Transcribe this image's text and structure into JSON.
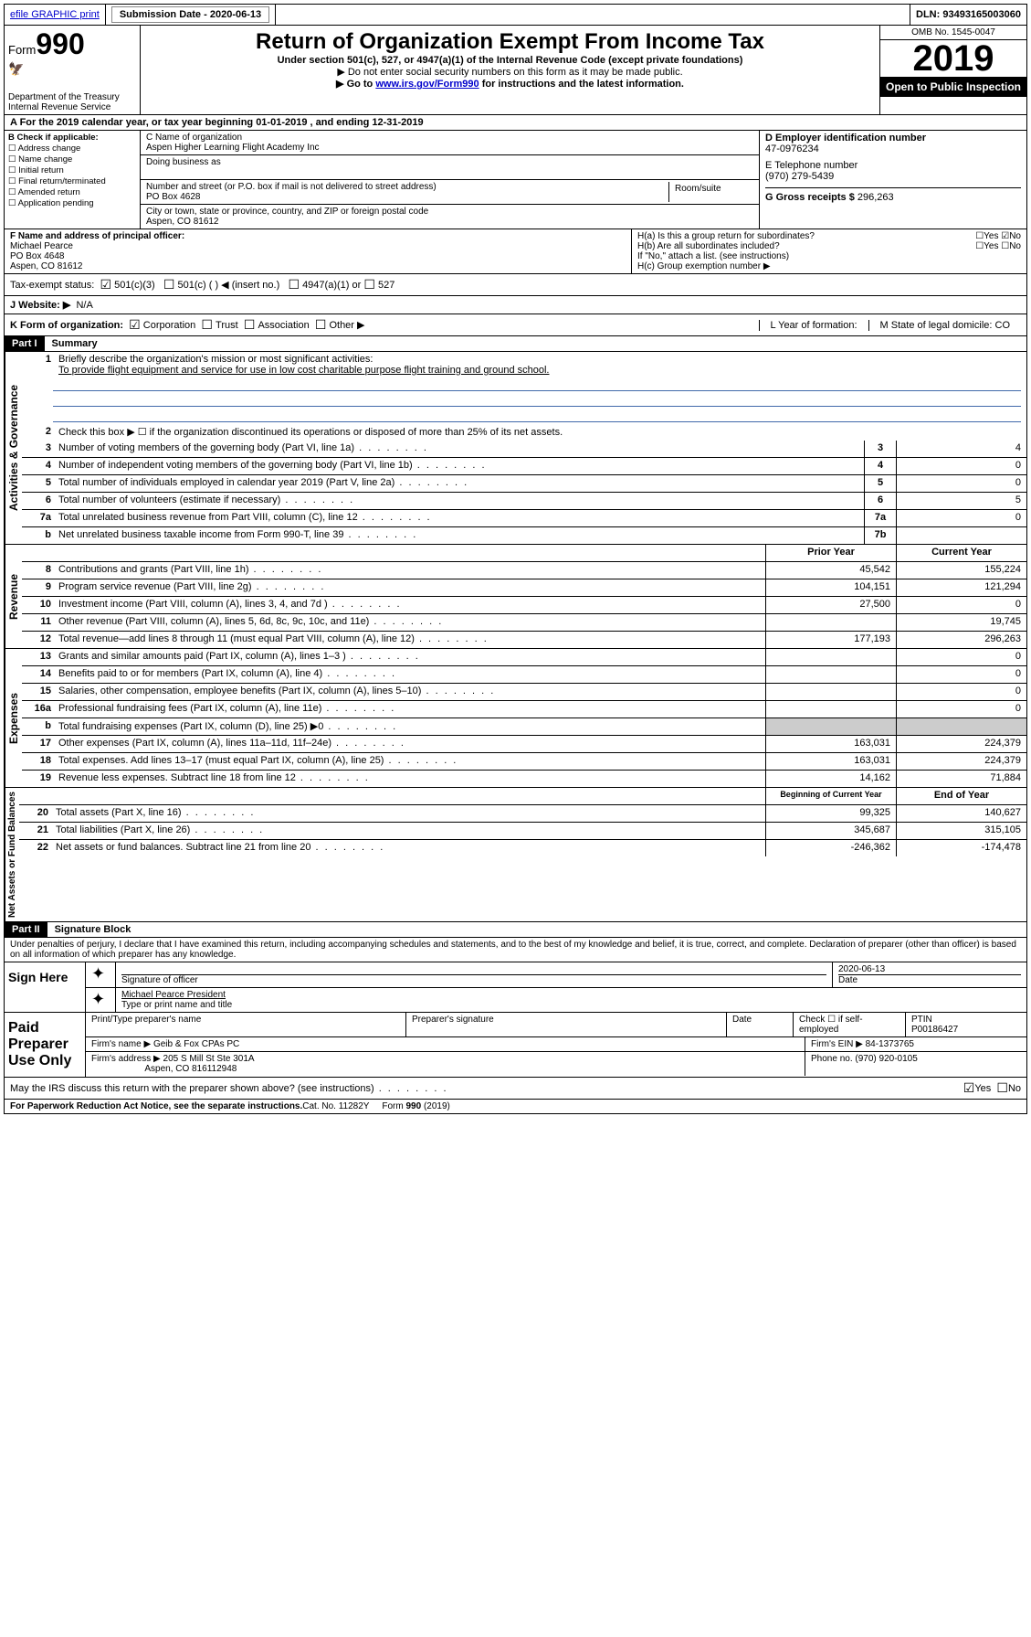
{
  "topbar": {
    "efile": "efile GRAPHIC print",
    "submission_label": "Submission Date - ",
    "submission_date": "2020-06-13",
    "dln_label": "DLN: ",
    "dln": "93493165003060"
  },
  "header": {
    "form_prefix": "Form",
    "form_number": "990",
    "dept": "Department of the Treasury",
    "irs": "Internal Revenue Service",
    "title": "Return of Organization Exempt From Income Tax",
    "subtitle": "Under section 501(c), 527, or 4947(a)(1) of the Internal Revenue Code (except private foundations)",
    "note1": "▶ Do not enter social security numbers on this form as it may be made public.",
    "note2_pre": "▶ Go to ",
    "note2_link": "www.irs.gov/Form990",
    "note2_post": " for instructions and the latest information.",
    "omb": "OMB No. 1545-0047",
    "year": "2019",
    "open": "Open to Public Inspection"
  },
  "row_a": "A For the 2019 calendar year, or tax year beginning 01-01-2019   , and ending 12-31-2019",
  "box_b": {
    "title": "B Check if applicable:",
    "opts": [
      "Address change",
      "Name change",
      "Initial return",
      "Final return/terminated",
      "Amended return",
      "Application pending"
    ]
  },
  "box_c": {
    "name_label": "C Name of organization",
    "name": "Aspen Higher Learning Flight Academy Inc",
    "dba_label": "Doing business as",
    "addr_label": "Number and street (or P.O. box if mail is not delivered to street address)",
    "room_label": "Room/suite",
    "addr": "PO Box 4628",
    "city_label": "City or town, state or province, country, and ZIP or foreign postal code",
    "city": "Aspen, CO  81612"
  },
  "box_d": {
    "ein_label": "D Employer identification number",
    "ein": "47-0976234",
    "tel_label": "E Telephone number",
    "tel": "(970) 279-5439",
    "gross_label": "G Gross receipts $ ",
    "gross": "296,263"
  },
  "box_f": {
    "label": "F  Name and address of principal officer:",
    "name": "Michael Pearce",
    "addr1": "PO Box 4648",
    "addr2": "Aspen, CO  81612"
  },
  "box_h": {
    "a": "H(a)  Is this a group return for subordinates?",
    "b": "H(b)  Are all subordinates included?",
    "bnote": "If \"No,\" attach a list. (see instructions)",
    "c": "H(c)  Group exemption number ▶"
  },
  "tax_status": {
    "label": "Tax-exempt status:",
    "o1": "501(c)(3)",
    "o2": "501(c) (  ) ◀ (insert no.)",
    "o3": "4947(a)(1) or",
    "o4": "527"
  },
  "row_j": {
    "label": "J Website: ▶",
    "val": "N/A"
  },
  "row_k": {
    "label": "K Form of organization:",
    "opts": [
      "Corporation",
      "Trust",
      "Association",
      "Other ▶"
    ],
    "l": "L Year of formation:",
    "m": "M State of legal domicile: CO"
  },
  "part1": {
    "label": "Part I",
    "title": "Summary"
  },
  "summary": {
    "q1": "Briefly describe the organization's mission or most significant activities:",
    "q1a": "To provide flight equipment and service for use in low cost charitable purpose flight training and ground school.",
    "q2": "Check this box ▶ ☐  if the organization discontinued its operations or disposed of more than 25% of its net assets.",
    "lines_gov": [
      {
        "n": "3",
        "t": "Number of voting members of the governing body (Part VI, line 1a)",
        "box": "3",
        "v": "4"
      },
      {
        "n": "4",
        "t": "Number of independent voting members of the governing body (Part VI, line 1b)",
        "box": "4",
        "v": "0"
      },
      {
        "n": "5",
        "t": "Total number of individuals employed in calendar year 2019 (Part V, line 2a)",
        "box": "5",
        "v": "0"
      },
      {
        "n": "6",
        "t": "Total number of volunteers (estimate if necessary)",
        "box": "6",
        "v": "5"
      },
      {
        "n": "7a",
        "t": "Total unrelated business revenue from Part VIII, column (C), line 12",
        "box": "7a",
        "v": "0"
      },
      {
        "n": "b",
        "t": "Net unrelated business taxable income from Form 990-T, line 39",
        "box": "7b",
        "v": ""
      }
    ],
    "col_head_prior": "Prior Year",
    "col_head_current": "Current Year",
    "revenue": [
      {
        "n": "8",
        "t": "Contributions and grants (Part VIII, line 1h)",
        "p": "45,542",
        "c": "155,224"
      },
      {
        "n": "9",
        "t": "Program service revenue (Part VIII, line 2g)",
        "p": "104,151",
        "c": "121,294"
      },
      {
        "n": "10",
        "t": "Investment income (Part VIII, column (A), lines 3, 4, and 7d )",
        "p": "27,500",
        "c": "0"
      },
      {
        "n": "11",
        "t": "Other revenue (Part VIII, column (A), lines 5, 6d, 8c, 9c, 10c, and 11e)",
        "p": "",
        "c": "19,745"
      },
      {
        "n": "12",
        "t": "Total revenue—add lines 8 through 11 (must equal Part VIII, column (A), line 12)",
        "p": "177,193",
        "c": "296,263"
      }
    ],
    "expenses": [
      {
        "n": "13",
        "t": "Grants and similar amounts paid (Part IX, column (A), lines 1–3 )",
        "p": "",
        "c": "0"
      },
      {
        "n": "14",
        "t": "Benefits paid to or for members (Part IX, column (A), line 4)",
        "p": "",
        "c": "0"
      },
      {
        "n": "15",
        "t": "Salaries, other compensation, employee benefits (Part IX, column (A), lines 5–10)",
        "p": "",
        "c": "0"
      },
      {
        "n": "16a",
        "t": "Professional fundraising fees (Part IX, column (A), line 11e)",
        "p": "",
        "c": "0"
      },
      {
        "n": "b",
        "t": "Total fundraising expenses (Part IX, column (D), line 25) ▶0",
        "p": "shade",
        "c": "shade"
      },
      {
        "n": "17",
        "t": "Other expenses (Part IX, column (A), lines 11a–11d, 11f–24e)",
        "p": "163,031",
        "c": "224,379"
      },
      {
        "n": "18",
        "t": "Total expenses. Add lines 13–17 (must equal Part IX, column (A), line 25)",
        "p": "163,031",
        "c": "224,379"
      },
      {
        "n": "19",
        "t": "Revenue less expenses. Subtract line 18 from line 12",
        "p": "14,162",
        "c": "71,884"
      }
    ],
    "col_head_begin": "Beginning of Current Year",
    "col_head_end": "End of Year",
    "net": [
      {
        "n": "20",
        "t": "Total assets (Part X, line 16)",
        "p": "99,325",
        "c": "140,627"
      },
      {
        "n": "21",
        "t": "Total liabilities (Part X, line 26)",
        "p": "345,687",
        "c": "315,105"
      },
      {
        "n": "22",
        "t": "Net assets or fund balances. Subtract line 21 from line 20",
        "p": "-246,362",
        "c": "-174,478"
      }
    ]
  },
  "vlabels": {
    "gov": "Activities & Governance",
    "rev": "Revenue",
    "exp": "Expenses",
    "net": "Net Assets or Fund Balances"
  },
  "part2": {
    "label": "Part II",
    "title": "Signature Block"
  },
  "perjury": "Under penalties of perjury, I declare that I have examined this return, including accompanying schedules and statements, and to the best of my knowledge and belief, it is true, correct, and complete. Declaration of preparer (other than officer) is based on all information of which preparer has any knowledge.",
  "sign": {
    "here": "Sign Here",
    "sig_officer": "Signature of officer",
    "date_label": "Date",
    "date": "2020-06-13",
    "name": "Michael Pearce  President",
    "name_label": "Type or print name and title"
  },
  "paid": {
    "label": "Paid Preparer Use Only",
    "h1": "Print/Type preparer's name",
    "h2": "Preparer's signature",
    "h3": "Date",
    "h4_pre": "Check ☐ if self-employed",
    "h5": "PTIN",
    "ptin": "P00186427",
    "firm_label": "Firm's name    ▶",
    "firm": "Geib & Fox CPAs PC",
    "ein_label": "Firm's EIN ▶",
    "ein": "84-1373765",
    "addr_label": "Firm's address ▶",
    "addr1": "205 S Mill St Ste 301A",
    "addr2": "Aspen, CO  816112948",
    "phone_label": "Phone no.",
    "phone": "(970) 920-0105"
  },
  "discuss": "May the IRS discuss this return with the preparer shown above? (see instructions)",
  "footer": {
    "pra": "For Paperwork Reduction Act Notice, see the separate instructions.",
    "cat": "Cat. No. 11282Y",
    "form": "Form 990 (2019)"
  }
}
